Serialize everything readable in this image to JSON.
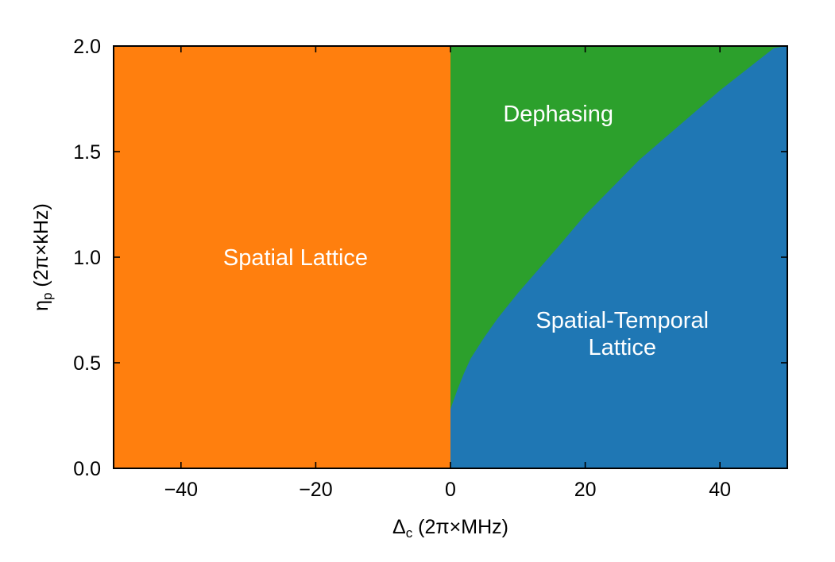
{
  "chart_data": {
    "type": "area",
    "xlim": [
      -50,
      50
    ],
    "ylim": [
      0,
      2.0
    ],
    "x_ticks": [
      -40,
      -20,
      0,
      20,
      40
    ],
    "x_tick_labels": [
      "−40",
      "−20",
      "0",
      "20",
      "40"
    ],
    "y_ticks": [
      0,
      0.5,
      1.0,
      1.5,
      2.0
    ],
    "y_tick_labels": [
      "0.0",
      "0.5",
      "1.0",
      "1.5",
      "2.0"
    ],
    "xlabel": {
      "main": "Δ",
      "sub": "c",
      "rest": " (2π×MHz)"
    },
    "ylabel": {
      "main": "η",
      "sub": "p",
      "rest": " (2π×kHz)"
    },
    "grid": false,
    "regions": [
      {
        "name": "Spatial Lattice",
        "label_lines": [
          "Spatial Lattice"
        ],
        "label_at": [
          -23,
          1.0
        ],
        "color": "#ff7f0e",
        "x_range": [
          -50,
          0
        ]
      },
      {
        "name": "Dephasing",
        "label_lines": [
          "Dephasing"
        ],
        "label_at": [
          16,
          1.68
        ],
        "color": "#2ca02c",
        "x_range": [
          0,
          50
        ]
      },
      {
        "name": "Spatial-Temporal Lattice",
        "label_lines": [
          "Spatial-Temporal",
          "Lattice"
        ],
        "label_at": [
          25.5,
          0.64
        ],
        "color": "#1f77b4",
        "x_range": [
          0,
          50
        ]
      }
    ],
    "boundary": {
      "name": "Dephasing / Spatial-Temporal Lattice boundary",
      "x": [
        0,
        1,
        2,
        3,
        5,
        7,
        10,
        13,
        16,
        20,
        24,
        28,
        32,
        36,
        40,
        44,
        48,
        50
      ],
      "y": [
        0.28,
        0.37,
        0.45,
        0.52,
        0.62,
        0.71,
        0.83,
        0.94,
        1.05,
        1.2,
        1.33,
        1.46,
        1.57,
        1.68,
        1.79,
        1.89,
        1.99,
        2.0
      ]
    }
  }
}
